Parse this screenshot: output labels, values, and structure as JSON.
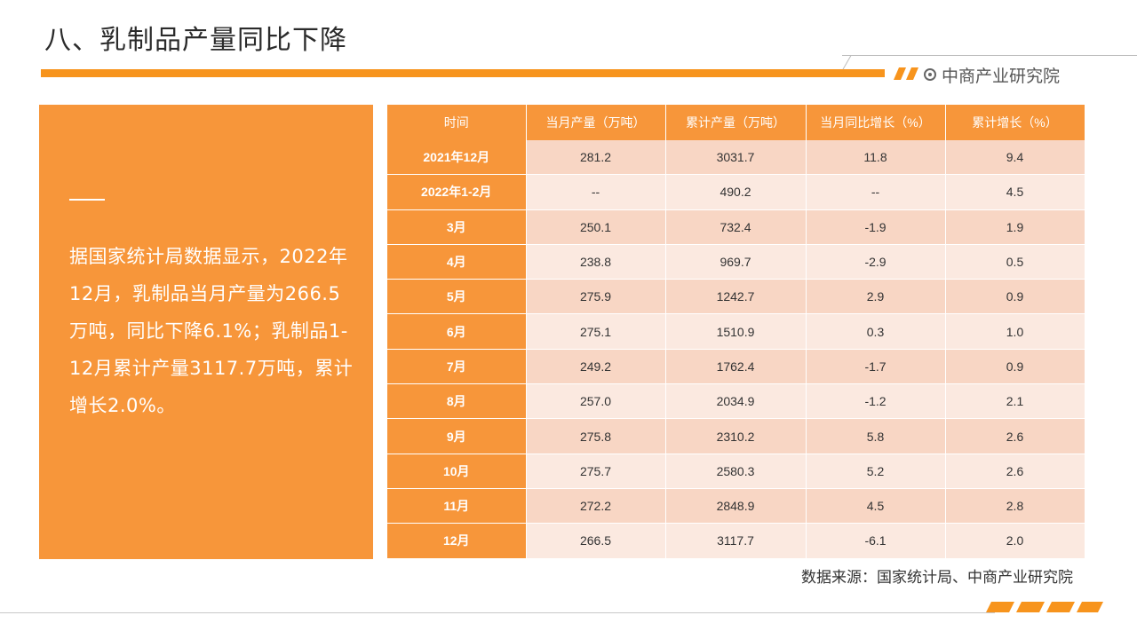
{
  "header": {
    "title": "八、乳制品产量同比下降",
    "brand": "中商产业研究院",
    "accent_color": "#f7941d"
  },
  "panel": {
    "text": "据国家统计局数据显示，2022年12月，乳制品当月产量为266.5万吨，同比下降6.1%；乳制品1-12月累计产量3117.7万吨，累计增长2.0%。",
    "background_color": "#f7963a"
  },
  "table": {
    "headers": [
      "时间",
      "当月产量（万吨）",
      "累计产量（万吨）",
      "当月同比增长（%）",
      "累计增长（%）"
    ],
    "rows": [
      [
        "2021年12月",
        "281.2",
        "3031.7",
        "11.8",
        "9.4"
      ],
      [
        "2022年1-2月",
        "--",
        "490.2",
        "--",
        "4.5"
      ],
      [
        "3月",
        "250.1",
        "732.4",
        "-1.9",
        "1.9"
      ],
      [
        "4月",
        "238.8",
        "969.7",
        "-2.9",
        "0.5"
      ],
      [
        "5月",
        "275.9",
        "1242.7",
        "2.9",
        "0.9"
      ],
      [
        "6月",
        "275.1",
        "1510.9",
        "0.3",
        "1.0"
      ],
      [
        "7月",
        "249.2",
        "1762.4",
        "-1.7",
        "0.9"
      ],
      [
        "8月",
        "257.0",
        "2034.9",
        "-1.2",
        "2.1"
      ],
      [
        "9月",
        "275.8",
        "2310.2",
        "5.8",
        "2.6"
      ],
      [
        "10月",
        "275.7",
        "2580.3",
        "5.2",
        "2.6"
      ],
      [
        "11月",
        "272.2",
        "2848.9",
        "4.5",
        "2.8"
      ],
      [
        "12月",
        "266.5",
        "3117.7",
        "-6.1",
        "2.0"
      ]
    ]
  },
  "footer": {
    "source": "数据来源：国家统计局、中商产业研究院"
  }
}
